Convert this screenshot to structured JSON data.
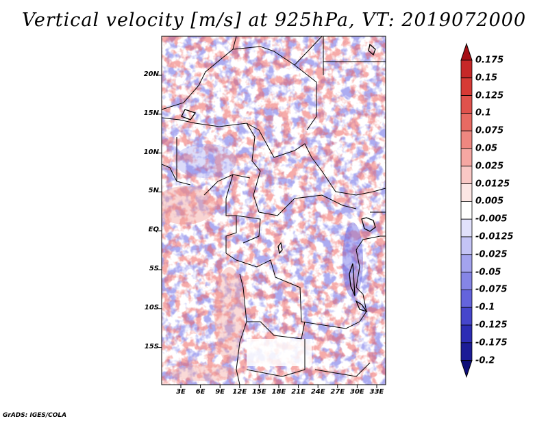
{
  "title": "Vertical velocity [m/s] at 925hPa, VT: 2019072000",
  "y_axis_labels": [
    "20N",
    "15N",
    "10N",
    "5N",
    "EQ",
    "5S",
    "10S",
    "15S"
  ],
  "x_axis_labels": [
    "3E",
    "6E",
    "9E",
    "12E",
    "15E",
    "18E",
    "21E",
    "24E",
    "27E",
    "30E",
    "33E"
  ],
  "colorbar": {
    "labels": [
      "0.175",
      "0.15",
      "0.125",
      "0.1",
      "0.075",
      "0.05",
      "0.025",
      "0.0125",
      "0.005",
      "-0.005",
      "-0.0125",
      "-0.025",
      "-0.05",
      "-0.075",
      "-0.1",
      "-0.125",
      "-0.175",
      "-0.2"
    ],
    "colors": [
      "#a50f15",
      "#c62828",
      "#d63a35",
      "#e0524c",
      "#e86a62",
      "#ef8780",
      "#f5a7a2",
      "#f9c8c5",
      "#fce6e4",
      "#ffffff",
      "#e1e1fb",
      "#c4c4f5",
      "#a3a3ee",
      "#8585e6",
      "#6464dc",
      "#4646cc",
      "#2d2db4",
      "#1c1c96",
      "#0e0e78"
    ]
  },
  "credit": "GrADS: IGES/COLA"
}
